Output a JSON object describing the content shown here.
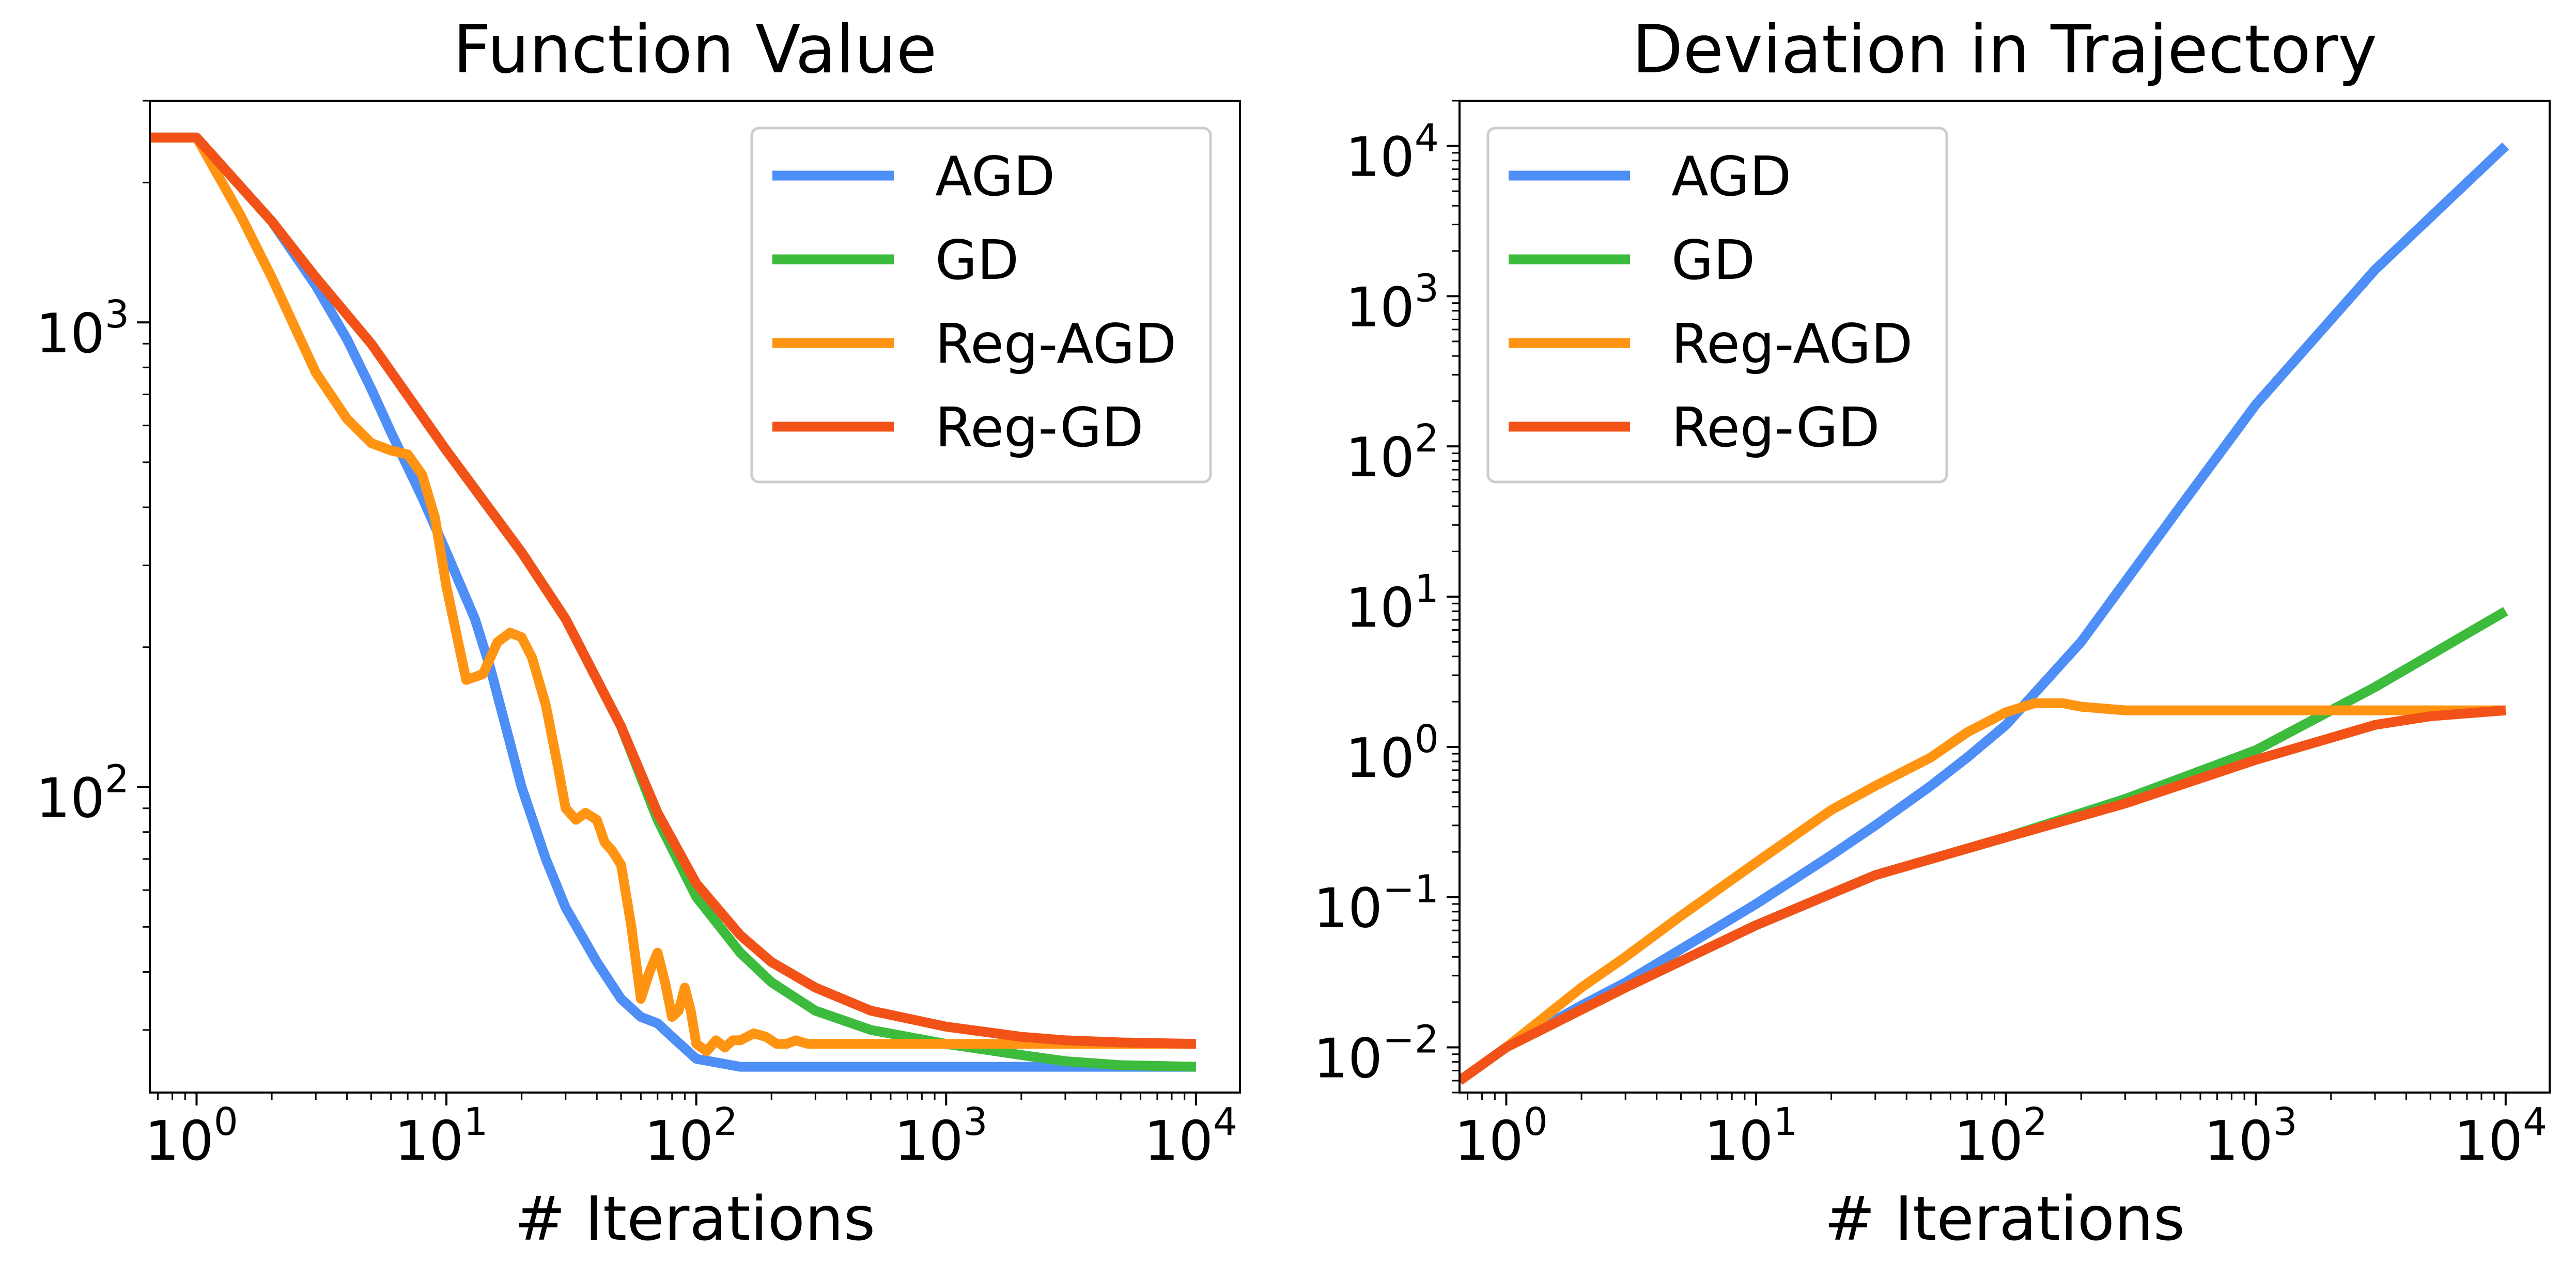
{
  "chart_data": [
    {
      "type": "line",
      "title": "Function Value",
      "xlabel": "# Iterations",
      "ylabel": "",
      "xscale": "log",
      "yscale": "log",
      "xlim": [
        0.65,
        15000
      ],
      "ylim": [
        22,
        3000
      ],
      "xticks": [
        {
          "value": 1,
          "base": "10",
          "exp": "0"
        },
        {
          "value": 10,
          "base": "10",
          "exp": "1"
        },
        {
          "value": 100,
          "base": "10",
          "exp": "2"
        },
        {
          "value": 1000,
          "base": "10",
          "exp": "3"
        },
        {
          "value": 10000,
          "base": "10",
          "exp": "4"
        }
      ],
      "yticks": [
        {
          "value": 100,
          "base": "10",
          "exp": "2"
        },
        {
          "value": 1000,
          "base": "10",
          "exp": "3"
        }
      ],
      "legend_position": "top-right",
      "series": [
        {
          "name": "AGD",
          "color": "#4e8ef7",
          "x": [
            0.65,
            1,
            2,
            3,
            4,
            5,
            6,
            8,
            10,
            13,
            15,
            20,
            25,
            30,
            40,
            50,
            60,
            70,
            80,
            100,
            150,
            200,
            300,
            500,
            1000,
            10000
          ],
          "y": [
            2500,
            2500,
            1650,
            1200,
            920,
            720,
            580,
            420,
            320,
            230,
            180,
            100,
            70,
            55,
            42,
            35,
            32,
            31,
            29,
            26,
            25,
            25,
            25,
            25,
            25,
            25
          ]
        },
        {
          "name": "GD",
          "color": "#3dbb3d",
          "x": [
            0.65,
            1,
            2,
            3,
            5,
            10,
            20,
            30,
            50,
            70,
            100,
            150,
            200,
            300,
            500,
            1000,
            2000,
            3000,
            5000,
            10000
          ],
          "y": [
            2500,
            2500,
            1650,
            1250,
            900,
            530,
            320,
            230,
            135,
            85,
            58,
            44,
            38,
            33,
            30,
            28,
            26.5,
            25.7,
            25.2,
            25
          ]
        },
        {
          "name": "Reg-AGD",
          "color": "#ff9412",
          "x": [
            0.65,
            1,
            1.5,
            2,
            3,
            4,
            5,
            6,
            7,
            8,
            9,
            10,
            12,
            14,
            16,
            18,
            20,
            22,
            25,
            28,
            30,
            33,
            36,
            40,
            43,
            46,
            50,
            55,
            60,
            65,
            70,
            75,
            80,
            85,
            90,
            95,
            100,
            110,
            120,
            130,
            140,
            150,
            170,
            190,
            210,
            230,
            250,
            280,
            300,
            350,
            400,
            1000,
            10000
          ],
          "y": [
            2500,
            2500,
            1700,
            1250,
            780,
            620,
            550,
            530,
            520,
            470,
            380,
            270,
            170,
            175,
            205,
            215,
            210,
            190,
            150,
            110,
            90,
            85,
            88,
            85,
            76,
            73,
            68,
            50,
            35,
            40,
            44,
            38,
            32,
            33,
            37,
            33,
            28,
            27,
            28.5,
            27.5,
            28.5,
            28.5,
            29.5,
            29,
            28,
            28,
            28.5,
            28,
            28,
            28,
            28,
            28,
            28
          ]
        },
        {
          "name": "Reg-GD",
          "color": "#f25218",
          "x": [
            0.65,
            1,
            2,
            3,
            5,
            10,
            20,
            30,
            50,
            70,
            100,
            150,
            200,
            300,
            500,
            1000,
            2000,
            3000,
            5000,
            10000
          ],
          "y": [
            2500,
            2500,
            1650,
            1250,
            900,
            530,
            320,
            230,
            135,
            88,
            62,
            48,
            42,
            37,
            33,
            30.5,
            29,
            28.5,
            28.2,
            28
          ]
        }
      ]
    },
    {
      "type": "line",
      "title": "Deviation in Trajectory",
      "xlabel": "# Iterations",
      "ylabel": "",
      "xscale": "log",
      "yscale": "log",
      "xlim": [
        0.65,
        15000
      ],
      "ylim": [
        0.005,
        20000
      ],
      "xticks": [
        {
          "value": 1,
          "base": "10",
          "exp": "0"
        },
        {
          "value": 10,
          "base": "10",
          "exp": "1"
        },
        {
          "value": 100,
          "base": "10",
          "exp": "2"
        },
        {
          "value": 1000,
          "base": "10",
          "exp": "3"
        },
        {
          "value": 10000,
          "base": "10",
          "exp": "4"
        }
      ],
      "yticks": [
        {
          "value": 0.01,
          "base": "10",
          "exp": "−2"
        },
        {
          "value": 0.1,
          "base": "10",
          "exp": "−1"
        },
        {
          "value": 1,
          "base": "10",
          "exp": "0"
        },
        {
          "value": 10,
          "base": "10",
          "exp": "1"
        },
        {
          "value": 100,
          "base": "10",
          "exp": "2"
        },
        {
          "value": 1000,
          "base": "10",
          "exp": "3"
        },
        {
          "value": 10000,
          "base": "10",
          "exp": "4"
        }
      ],
      "legend_position": "top-left",
      "series": [
        {
          "name": "AGD",
          "color": "#4e8ef7",
          "x": [
            0.65,
            1,
            2,
            3,
            5,
            10,
            20,
            30,
            50,
            70,
            100,
            200,
            500,
            1000,
            3000,
            10000
          ],
          "y": [
            0.006,
            0.01,
            0.019,
            0.027,
            0.045,
            0.09,
            0.19,
            0.3,
            0.55,
            0.85,
            1.4,
            5,
            40,
            190,
            1500,
            10000
          ]
        },
        {
          "name": "GD",
          "color": "#3dbb3d",
          "x": [
            0.65,
            1,
            3,
            10,
            30,
            100,
            300,
            1000,
            3000,
            10000
          ],
          "y": [
            0.006,
            0.01,
            0.025,
            0.065,
            0.14,
            0.25,
            0.45,
            0.95,
            2.5,
            8
          ]
        },
        {
          "name": "Reg-AGD",
          "color": "#ff9412",
          "x": [
            0.65,
            1,
            2,
            3,
            5,
            10,
            20,
            30,
            50,
            70,
            100,
            130,
            170,
            200,
            300,
            500,
            1000,
            10000
          ],
          "y": [
            0.006,
            0.01,
            0.025,
            0.04,
            0.075,
            0.17,
            0.38,
            0.55,
            0.85,
            1.25,
            1.7,
            1.95,
            1.95,
            1.85,
            1.75,
            1.75,
            1.75,
            1.75
          ]
        },
        {
          "name": "Reg-GD",
          "color": "#f25218",
          "x": [
            0.65,
            1,
            3,
            10,
            30,
            100,
            300,
            1000,
            2000,
            3000,
            5000,
            10000
          ],
          "y": [
            0.006,
            0.01,
            0.025,
            0.065,
            0.14,
            0.25,
            0.42,
            0.82,
            1.15,
            1.4,
            1.6,
            1.75
          ]
        }
      ]
    }
  ]
}
